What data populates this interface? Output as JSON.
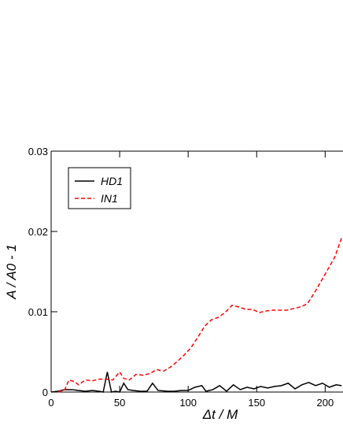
{
  "chart_data": {
    "type": "line",
    "xlabel": "Δt / M",
    "ylabel": "A / A0 - 1",
    "xlim": [
      0,
      213
    ],
    "ylim": [
      0,
      0.03
    ],
    "xticks": [
      0,
      50,
      100,
      150,
      200
    ],
    "yticks": [
      0,
      0.01,
      0.02,
      0.03
    ],
    "legend": "upper left",
    "series": [
      {
        "name": "HD1",
        "color": "#000000",
        "dash": false,
        "x": [
          0,
          5,
          10,
          15,
          20,
          25,
          30,
          35,
          38,
          41,
          44,
          47,
          50,
          53,
          56,
          60,
          65,
          70,
          74,
          78,
          85,
          90,
          95,
          100,
          105,
          110,
          113,
          118,
          123,
          128,
          133,
          138,
          143,
          148,
          153,
          158,
          163,
          168,
          173,
          178,
          183,
          188,
          193,
          198,
          203,
          208,
          212
        ],
        "values": [
          0,
          0.0001,
          0.0003,
          0.0003,
          0.0002,
          0.0001,
          0.0002,
          0.0001,
          0,
          0.0025,
          0,
          0.0001,
          0,
          0.0011,
          0.0003,
          0.0002,
          0.0001,
          0.0001,
          0.0011,
          0.0002,
          0.0001,
          0.0001,
          0.0002,
          0.0002,
          0.0006,
          0.0008,
          0.0001,
          0.0003,
          0.0008,
          0.0001,
          0.0009,
          0.0003,
          0.0006,
          0.0004,
          0.0007,
          0.0005,
          0.0007,
          0.0008,
          0.0011,
          0.0004,
          0.0009,
          0.0012,
          0.0008,
          0.0011,
          0.0006,
          0.0009,
          0.0008
        ]
      },
      {
        "name": "IN1",
        "color": "#ff0000",
        "dash": true,
        "x": [
          5,
          10,
          13,
          17,
          20,
          25,
          30,
          35,
          40,
          45,
          50,
          53,
          57,
          62,
          67,
          72,
          77,
          82,
          87,
          92,
          97,
          102,
          107,
          112,
          117,
          122,
          127,
          132,
          137,
          142,
          147,
          152,
          157,
          162,
          167,
          172,
          177,
          182,
          187,
          192,
          197,
          202,
          207,
          212
        ],
        "values": [
          0,
          0.0003,
          0.0015,
          0.0013,
          0.0009,
          0.0015,
          0.0014,
          0.0016,
          0.0016,
          0.0015,
          0.0025,
          0.0017,
          0.0015,
          0.0022,
          0.0021,
          0.0023,
          0.0028,
          0.0026,
          0.0031,
          0.0038,
          0.0046,
          0.0055,
          0.0068,
          0.0082,
          0.009,
          0.0093,
          0.0099,
          0.0108,
          0.0106,
          0.0103,
          0.0103,
          0.0099,
          0.0101,
          0.0102,
          0.0102,
          0.0102,
          0.0104,
          0.0106,
          0.011,
          0.0123,
          0.0138,
          0.0153,
          0.0168,
          0.0192
        ]
      }
    ]
  }
}
